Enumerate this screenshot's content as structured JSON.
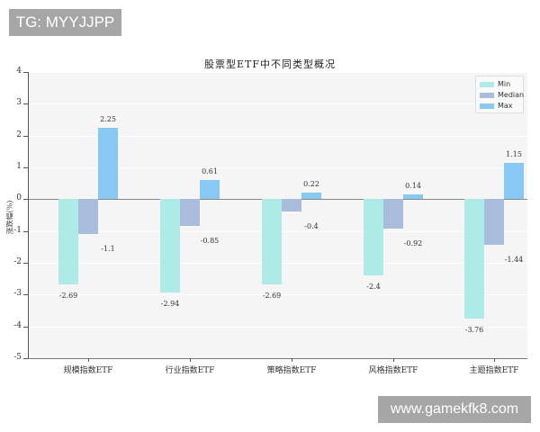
{
  "watermarks": {
    "top": "TG: MYYJJPP",
    "bottom": "www.gamekfk8.com"
  },
  "colors": {
    "min": "#aeeae6",
    "median": "#a9bcdc",
    "max": "#89c8f2",
    "plot_bg": "#f5f5f5"
  },
  "chart_data": {
    "type": "bar",
    "title": "股票型ETF中不同类型概况",
    "xlabel": "",
    "ylabel": "涨跌幅(%)",
    "ylim": [
      -5,
      4
    ],
    "yticks": [
      "4",
      "3",
      "2",
      "1",
      "0",
      "-1",
      "-2",
      "-3",
      "-4",
      "-5"
    ],
    "grid": true,
    "legend_position": "upper right",
    "categories": [
      "规模指数ETF",
      "行业指数ETF",
      "策略指数ETF",
      "风格指数ETF",
      "主题指数ETF"
    ],
    "series": [
      {
        "name": "Min",
        "values": [
          -2.69,
          -2.94,
          -2.69,
          -2.4,
          -3.76
        ]
      },
      {
        "name": "Median",
        "values": [
          -1.1,
          -0.85,
          -0.4,
          -0.92,
          -1.44
        ]
      },
      {
        "name": "Max",
        "values": [
          2.25,
          0.61,
          0.22,
          0.14,
          1.15
        ]
      }
    ],
    "value_labels": {
      "Min": [
        "-2.69",
        "-2.94",
        "-2.69",
        "-2.4",
        "-3.76"
      ],
      "Median": [
        "-1.1",
        "-0.85",
        "-0.4",
        "-0.92",
        "-1.44"
      ],
      "Max": [
        "2.25",
        "0.61",
        "0.22",
        "0.14",
        "1.15"
      ]
    }
  },
  "legend": {
    "items": [
      "Min",
      "Median",
      "Max"
    ]
  }
}
